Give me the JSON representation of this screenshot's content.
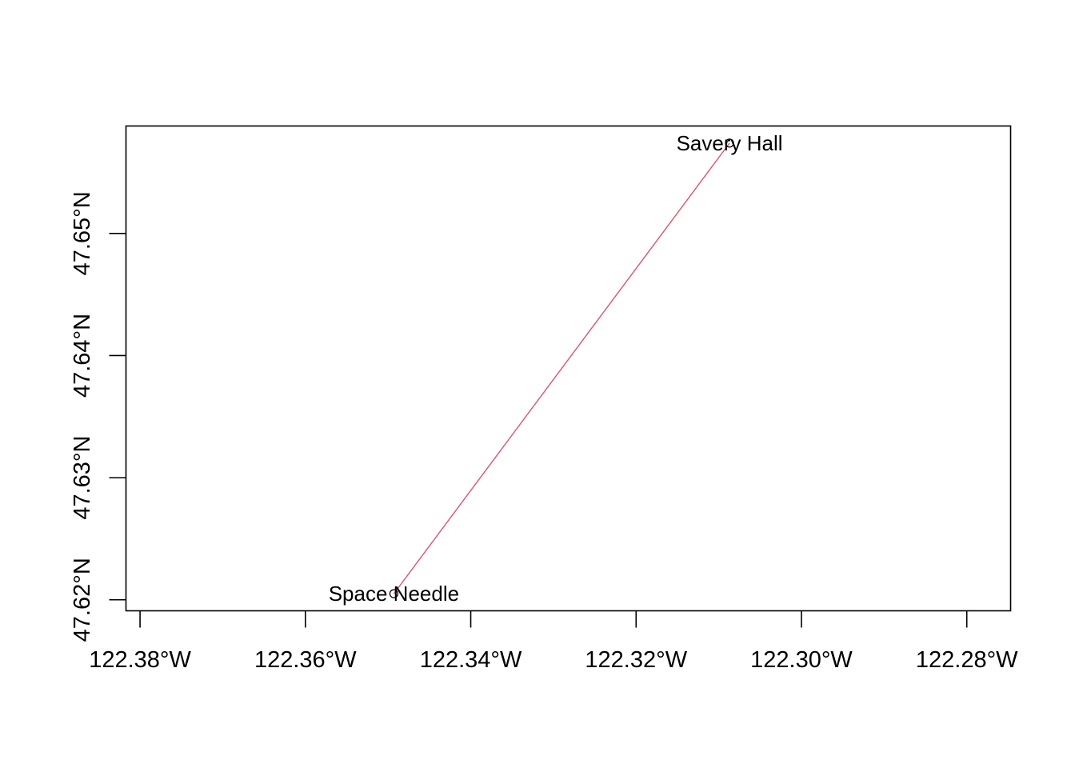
{
  "map": {
    "xlim": [
      -122.3817,
      -122.2747
    ],
    "ylim": [
      47.6191,
      47.6588
    ],
    "grid": false,
    "x_ticks": [
      {
        "value": -122.38,
        "label": "122.38°W"
      },
      {
        "value": -122.36,
        "label": "122.36°W"
      },
      {
        "value": -122.34,
        "label": "122.34°W"
      },
      {
        "value": -122.32,
        "label": "122.32°W"
      },
      {
        "value": -122.3,
        "label": "122.30°W"
      },
      {
        "value": -122.28,
        "label": "122.28°W"
      }
    ],
    "y_ticks": [
      {
        "value": 47.62,
        "label": "47.62°N"
      },
      {
        "value": 47.63,
        "label": "47.63°N"
      },
      {
        "value": 47.64,
        "label": "47.64°N"
      },
      {
        "value": 47.65,
        "label": "47.65°N"
      }
    ],
    "points": [
      {
        "id": "space-needle",
        "label": "Space Needle",
        "lon": -122.3493,
        "lat": 47.6205
      },
      {
        "id": "savery-hall",
        "label": "Savery Hall",
        "lon": -122.3087,
        "lat": 47.6574
      }
    ],
    "route": {
      "from": "space-needle",
      "to": "savery-hall",
      "color": "#DF536B"
    },
    "point_color": "#000000"
  }
}
